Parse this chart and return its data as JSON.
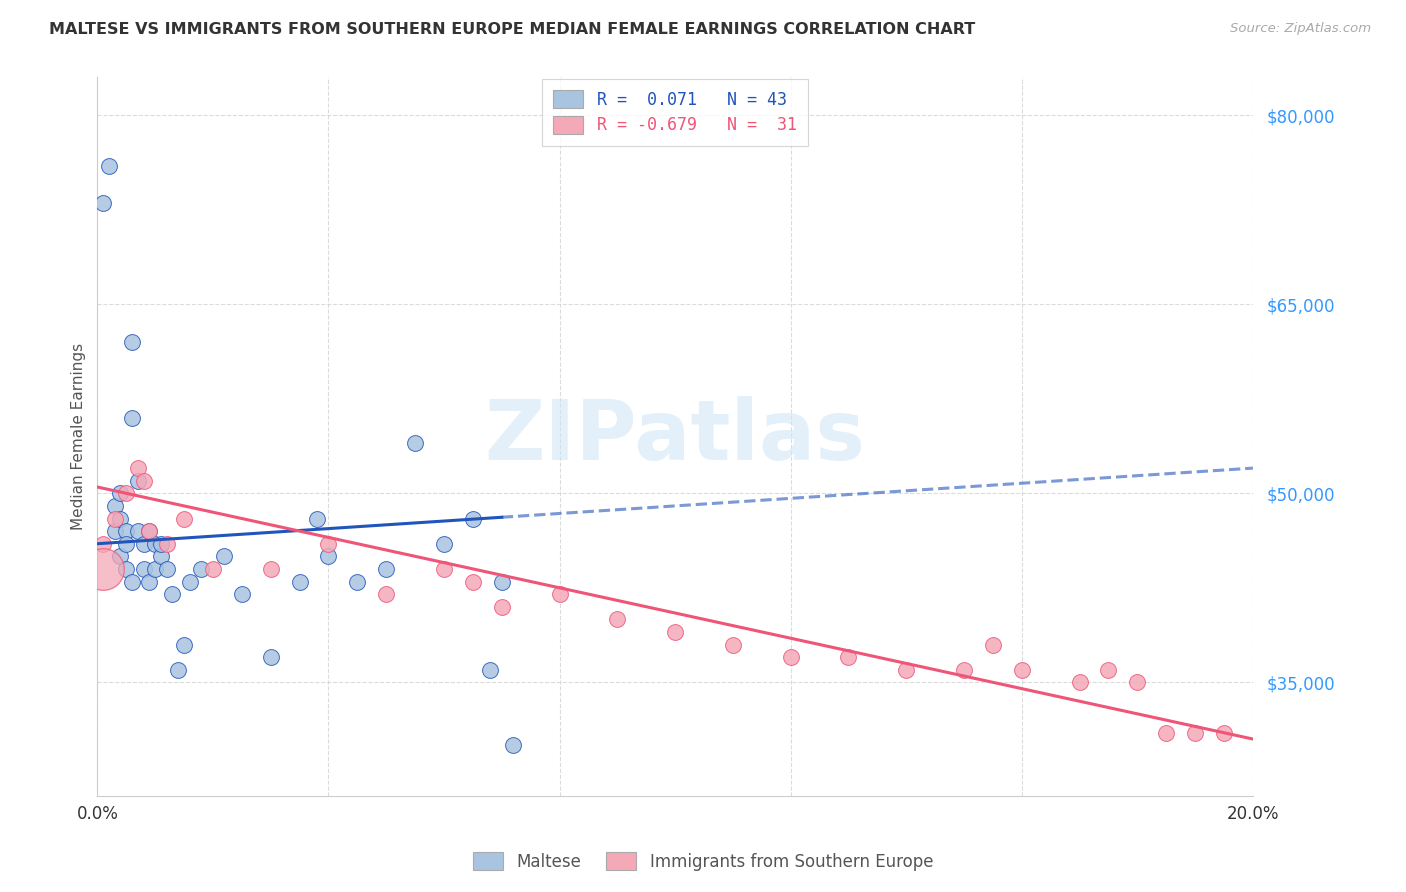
{
  "title": "MALTESE VS IMMIGRANTS FROM SOUTHERN EUROPE MEDIAN FEMALE EARNINGS CORRELATION CHART",
  "source": "Source: ZipAtlas.com",
  "ylabel": "Median Female Earnings",
  "xlim": [
    0.0,
    0.2
  ],
  "ylim": [
    26000,
    83000
  ],
  "yticks": [
    35000,
    50000,
    65000,
    80000
  ],
  "xticks": [
    0.0,
    0.04,
    0.08,
    0.12,
    0.16,
    0.2
  ],
  "xtick_labels": [
    "0.0%",
    "",
    "",
    "",
    "",
    "20.0%"
  ],
  "color_maltese": "#a8c4e0",
  "color_immigrants": "#f4a8b8",
  "line_color_maltese": "#2255bb",
  "line_color_immigrants": "#ee5577",
  "legend_text1": "R =  0.071   N = 43",
  "legend_text2": "R = -0.679   N =  31",
  "legend_label_maltese": "Maltese",
  "legend_label_immigrants": "Immigrants from Southern Europe",
  "watermark": "ZIPatlas",
  "maltese_x": [
    0.001,
    0.002,
    0.003,
    0.003,
    0.004,
    0.004,
    0.004,
    0.005,
    0.005,
    0.005,
    0.006,
    0.006,
    0.006,
    0.007,
    0.007,
    0.008,
    0.008,
    0.009,
    0.009,
    0.01,
    0.01,
    0.011,
    0.011,
    0.012,
    0.013,
    0.014,
    0.015,
    0.016,
    0.018,
    0.022,
    0.025,
    0.03,
    0.035,
    0.038,
    0.04,
    0.045,
    0.05,
    0.055,
    0.06,
    0.065,
    0.068,
    0.07,
    0.072
  ],
  "maltese_y": [
    73000,
    76000,
    47000,
    49000,
    48000,
    45000,
    50000,
    47000,
    46000,
    44000,
    56000,
    43000,
    62000,
    47000,
    51000,
    44000,
    46000,
    47000,
    43000,
    46000,
    44000,
    45000,
    46000,
    44000,
    42000,
    36000,
    38000,
    43000,
    44000,
    45000,
    42000,
    37000,
    43000,
    48000,
    45000,
    43000,
    44000,
    54000,
    46000,
    48000,
    36000,
    43000,
    30000
  ],
  "immigrants_x": [
    0.001,
    0.003,
    0.005,
    0.007,
    0.008,
    0.009,
    0.012,
    0.015,
    0.02,
    0.03,
    0.04,
    0.05,
    0.06,
    0.065,
    0.07,
    0.08,
    0.09,
    0.1,
    0.11,
    0.12,
    0.13,
    0.14,
    0.15,
    0.155,
    0.16,
    0.17,
    0.175,
    0.18,
    0.185,
    0.19,
    0.195
  ],
  "immigrants_y": [
    46000,
    48000,
    50000,
    52000,
    51000,
    47000,
    46000,
    48000,
    44000,
    44000,
    46000,
    42000,
    44000,
    43000,
    41000,
    42000,
    40000,
    39000,
    38000,
    37000,
    37000,
    36000,
    36000,
    38000,
    36000,
    35000,
    36000,
    35000,
    31000,
    31000,
    31000
  ],
  "immigrants_large_x": [
    0.001
  ],
  "immigrants_large_y": [
    44000
  ],
  "grid_color": "#cccccc",
  "background_color": "#ffffff",
  "title_color": "#333333",
  "axis_label_color": "#555555",
  "ytick_color": "#3399ff",
  "trendline_maltese_x0": 0.0,
  "trendline_maltese_x1": 0.2,
  "trendline_maltese_y0": 46000,
  "trendline_maltese_y1": 52000,
  "trendline_immigrants_x0": 0.0,
  "trendline_immigrants_x1": 0.2,
  "trendline_immigrants_y0": 50500,
  "trendline_immigrants_y1": 30500
}
